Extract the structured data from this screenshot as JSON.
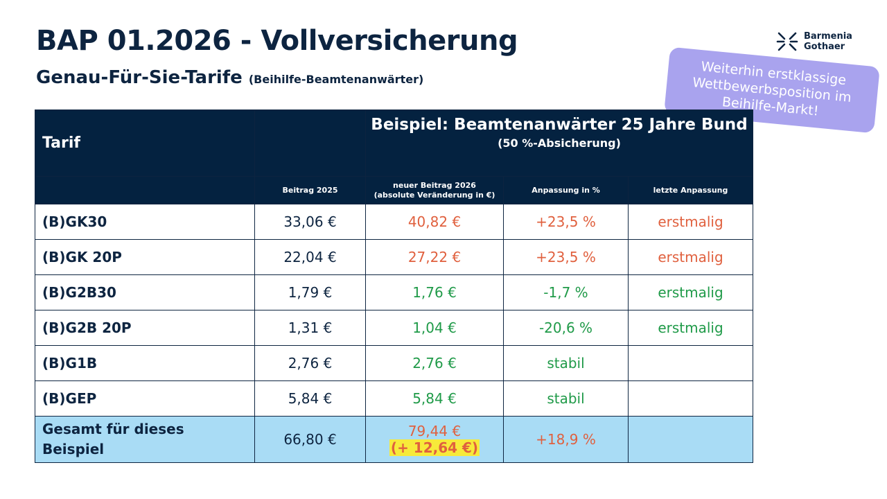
{
  "header": {
    "title": "BAP 01.2026 - Vollversicherung",
    "subtitle": "Genau-Für-Sie-Tarife",
    "subtitle_small": "(Beihilfe-Beamtenanwärter)"
  },
  "logo": {
    "line1": "Barmenia",
    "line2": "Gothaer",
    "icon": "star-burst-icon"
  },
  "sticker": {
    "text": "Weiterhin erstklassige Wettbewerbsposition im Beihilfe-Markt!",
    "color": "#a9a3ee"
  },
  "table": {
    "col_tarif": "Tarif",
    "example_title": "Beispiel: Beamtenanwärter 25 Jahre Bund",
    "example_sub": "(50 %-Absicherung)",
    "sub_headers": [
      "Beitrag 2025",
      "neuer Beitrag 2026",
      "(absolute Veränderung in €)",
      "Anpassung in %",
      "letzte Anpassung"
    ],
    "rows": [
      {
        "name": "(B)GK30",
        "beitrag2025": "33,06 €",
        "beitrag2026": "40,82 €",
        "anpassung": "+23,5 %",
        "letzte": "erstmalig"
      },
      {
        "name": "(B)GK 20P",
        "beitrag2025": "22,04 €",
        "beitrag2026": "27,22 €",
        "anpassung": "+23,5 %",
        "letzte": "erstmalig"
      },
      {
        "name": "(B)G2B30",
        "beitrag2025": "1,79 €",
        "beitrag2026": "1,76 €",
        "anpassung": "-1,7 %",
        "letzte": "erstmalig"
      },
      {
        "name": "(B)G2B 20P",
        "beitrag2025": "1,31 €",
        "beitrag2026": "1,04 €",
        "anpassung": "-20,6 %",
        "letzte": "erstmalig"
      },
      {
        "name": "(B)G1B",
        "beitrag2025": "2,76 €",
        "beitrag2026": "2,76 €",
        "anpassung": "stabil",
        "letzte": ""
      },
      {
        "name": "(B)GEP",
        "beitrag2025": "5,84 €",
        "beitrag2026": "5,84 €",
        "anpassung": "stabil",
        "letzte": ""
      }
    ],
    "total": {
      "name_line1": "Gesamt für dieses",
      "name_line2": "Beispiel",
      "beitrag2025": "66,80 €",
      "beitrag2026": "79,44 €",
      "diff": "(+ 12,64 €)",
      "anpassung": "+18,9 %",
      "letzte": ""
    }
  },
  "colors": {
    "navy": "#042240",
    "increase": "#e0603e",
    "decrease": "#1f9a48",
    "total_bg": "#a9dcf5",
    "highlight": "#f7ea3a"
  }
}
